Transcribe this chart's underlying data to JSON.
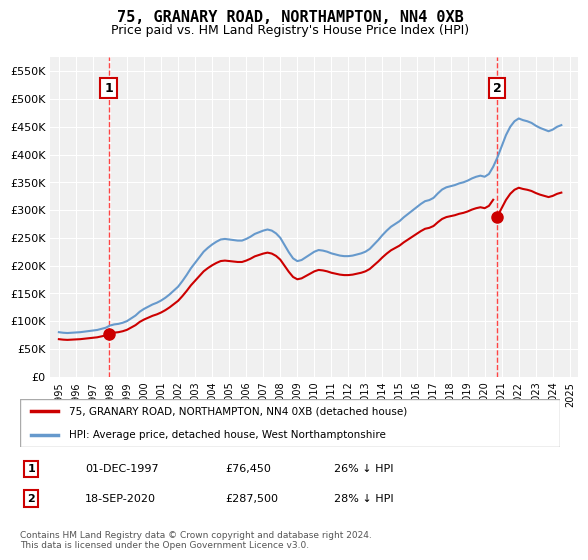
{
  "title": "75, GRANARY ROAD, NORTHAMPTON, NN4 0XB",
  "subtitle": "Price paid vs. HM Land Registry's House Price Index (HPI)",
  "ylabel": "",
  "background_color": "#ffffff",
  "plot_bg_color": "#f0f0f0",
  "grid_color": "#ffffff",
  "sale1_date": "01-DEC-1997",
  "sale1_price": 76450,
  "sale1_hpi": "26% ↓ HPI",
  "sale2_date": "18-SEP-2020",
  "sale2_price": 287500,
  "sale2_hpi": "28% ↓ HPI",
  "legend_line1": "75, GRANARY ROAD, NORTHAMPTON, NN4 0XB (detached house)",
  "legend_line2": "HPI: Average price, detached house, West Northamptonshire",
  "footnote": "Contains HM Land Registry data © Crown copyright and database right 2024.\nThis data is licensed under the Open Government Licence v3.0.",
  "red_line_color": "#cc0000",
  "blue_line_color": "#6699cc",
  "marker1_color": "#cc0000",
  "marker2_color": "#cc0000",
  "vline_color": "#ff4444",
  "ylim": [
    0,
    575000
  ],
  "yticks": [
    0,
    50000,
    100000,
    150000,
    200000,
    250000,
    300000,
    350000,
    400000,
    450000,
    500000,
    550000
  ],
  "hpi_data": {
    "years": [
      1995.0,
      1995.25,
      1995.5,
      1995.75,
      1996.0,
      1996.25,
      1996.5,
      1996.75,
      1997.0,
      1997.25,
      1997.5,
      1997.75,
      1998.0,
      1998.25,
      1998.5,
      1998.75,
      1999.0,
      1999.25,
      1999.5,
      1999.75,
      2000.0,
      2000.25,
      2000.5,
      2000.75,
      2001.0,
      2001.25,
      2001.5,
      2001.75,
      2002.0,
      2002.25,
      2002.5,
      2002.75,
      2003.0,
      2003.25,
      2003.5,
      2003.75,
      2004.0,
      2004.25,
      2004.5,
      2004.75,
      2005.0,
      2005.25,
      2005.5,
      2005.75,
      2006.0,
      2006.25,
      2006.5,
      2006.75,
      2007.0,
      2007.25,
      2007.5,
      2007.75,
      2008.0,
      2008.25,
      2008.5,
      2008.75,
      2009.0,
      2009.25,
      2009.5,
      2009.75,
      2010.0,
      2010.25,
      2010.5,
      2010.75,
      2011.0,
      2011.25,
      2011.5,
      2011.75,
      2012.0,
      2012.25,
      2012.5,
      2012.75,
      2013.0,
      2013.25,
      2013.5,
      2013.75,
      2014.0,
      2014.25,
      2014.5,
      2014.75,
      2015.0,
      2015.25,
      2015.5,
      2015.75,
      2016.0,
      2016.25,
      2016.5,
      2016.75,
      2017.0,
      2017.25,
      2017.5,
      2017.75,
      2018.0,
      2018.25,
      2018.5,
      2018.75,
      2019.0,
      2019.25,
      2019.5,
      2019.75,
      2020.0,
      2020.25,
      2020.5,
      2020.75,
      2021.0,
      2021.25,
      2021.5,
      2021.75,
      2022.0,
      2022.25,
      2022.5,
      2022.75,
      2023.0,
      2023.25,
      2023.5,
      2023.75,
      2024.0,
      2024.25,
      2024.5
    ],
    "values": [
      80000,
      79000,
      78500,
      79000,
      79500,
      80000,
      81000,
      82000,
      83000,
      84000,
      86000,
      88000,
      92000,
      94000,
      95000,
      97000,
      100000,
      105000,
      110000,
      117000,
      122000,
      126000,
      130000,
      133000,
      137000,
      142000,
      148000,
      155000,
      162000,
      172000,
      183000,
      195000,
      205000,
      215000,
      225000,
      232000,
      238000,
      243000,
      247000,
      248000,
      247000,
      246000,
      245000,
      245000,
      248000,
      252000,
      257000,
      260000,
      263000,
      265000,
      263000,
      258000,
      250000,
      237000,
      224000,
      213000,
      208000,
      210000,
      215000,
      220000,
      225000,
      228000,
      227000,
      225000,
      222000,
      220000,
      218000,
      217000,
      217000,
      218000,
      220000,
      222000,
      225000,
      230000,
      238000,
      246000,
      255000,
      263000,
      270000,
      275000,
      280000,
      287000,
      293000,
      299000,
      305000,
      311000,
      316000,
      318000,
      322000,
      330000,
      337000,
      341000,
      343000,
      345000,
      348000,
      350000,
      353000,
      357000,
      360000,
      362000,
      360000,
      365000,
      378000,
      395000,
      415000,
      435000,
      450000,
      460000,
      465000,
      462000,
      460000,
      457000,
      452000,
      448000,
      445000,
      442000,
      445000,
      450000,
      453000
    ]
  },
  "red_data": {
    "years": [
      1997.92,
      2020.72
    ],
    "values": [
      76450,
      287500
    ]
  },
  "sale1_year": 1997.92,
  "sale2_year": 2020.72
}
